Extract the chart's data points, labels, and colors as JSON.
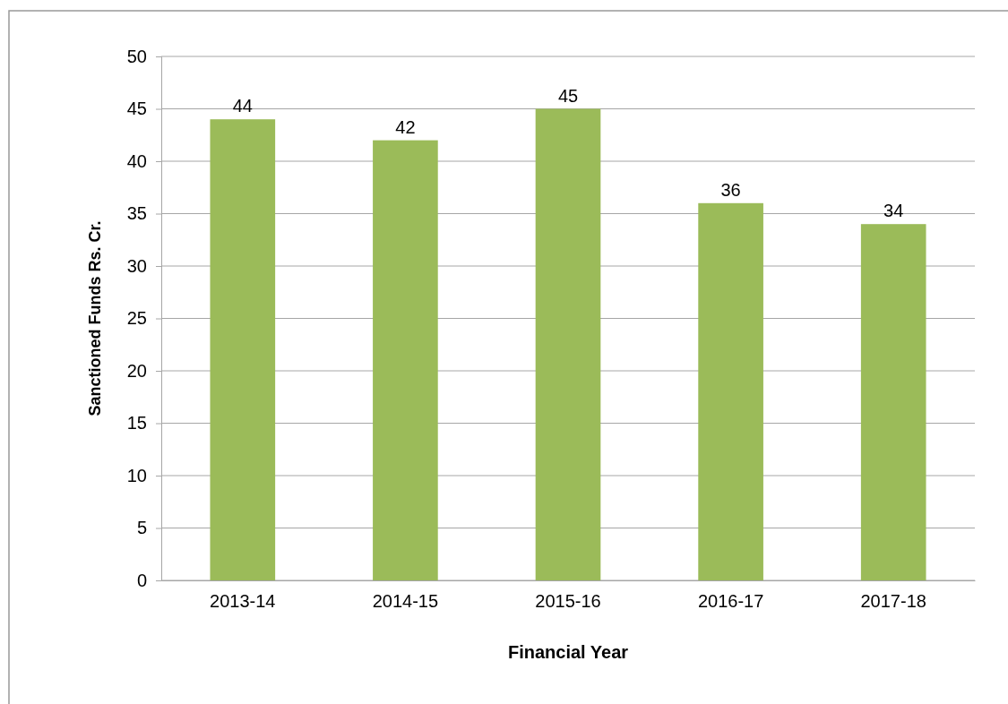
{
  "chart_data": {
    "type": "bar",
    "xlabel": "Financial Year",
    "ylabel": "Sanctioned Funds Rs. Cr.",
    "categories": [
      "2013-14",
      "2014-15",
      "2015-16",
      "2016-17",
      "2017-18"
    ],
    "values": [
      44,
      42,
      45,
      36,
      34
    ],
    "color": "#9bbb59",
    "ylim": [
      0,
      50
    ],
    "yticks": [
      0,
      5,
      10,
      15,
      20,
      25,
      30,
      35,
      40,
      45,
      50
    ],
    "grid": "y",
    "data_labels": true
  }
}
